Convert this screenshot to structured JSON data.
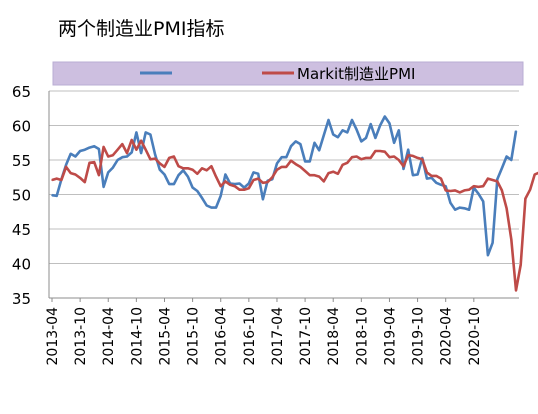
{
  "chart_data": {
    "type": "line",
    "title": "两个制造业PMI指标",
    "xlabel": "",
    "ylabel": "",
    "ylim": [
      35,
      65
    ],
    "yticks": [
      35,
      40,
      45,
      50,
      55,
      60,
      65
    ],
    "x_tick_labels": [
      "2013-04",
      "2013-10",
      "2014-04",
      "2014-10",
      "2015-04",
      "2015-10",
      "2016-04",
      "2016-10",
      "2017-04",
      "2017-10",
      "2018-04",
      "2018-10",
      "2019-04",
      "2019-10",
      "2020-04",
      "2020-10"
    ],
    "grid": "horizontal",
    "legend_position": "top",
    "x_start": "2013-04",
    "x_end": "2020-10",
    "series": [
      {
        "name": "",
        "color": "#4a7ebb",
        "values": [
          49.9,
          49.8,
          52.2,
          54.3,
          55.9,
          55.5,
          56.3,
          56.5,
          56.8,
          57.0,
          56.6,
          51.1,
          53.2,
          53.9,
          55.0,
          55.4,
          55.5,
          56.1,
          59.0,
          56.0,
          59.0,
          58.7,
          55.8,
          53.6,
          52.9,
          51.5,
          51.5,
          52.8,
          53.5,
          52.6,
          51.0,
          50.5,
          49.5,
          48.4,
          48.1,
          48.1,
          49.8,
          52.9,
          51.6,
          51.5,
          51.6,
          51.0,
          51.6,
          53.2,
          53.0,
          49.3,
          52.0,
          52.2,
          54.5,
          55.4,
          55.4,
          57.0,
          57.7,
          57.3,
          54.8,
          54.8,
          57.5,
          56.4,
          58.6,
          60.8,
          58.7,
          58.3,
          59.3,
          59.0,
          60.8,
          59.4,
          57.7,
          58.2,
          60.2,
          58.2,
          60.0,
          61.3,
          60.3,
          57.5,
          59.3,
          53.7,
          56.5,
          52.8,
          52.9,
          55.3,
          52.3,
          52.4,
          51.7,
          51.4,
          51.2,
          48.8,
          47.8,
          48.1,
          48.0,
          47.8,
          51.0,
          50.1,
          49.0,
          41.2,
          43.0,
          52.2,
          53.8,
          55.5,
          55.0,
          59.2
        ]
      },
      {
        "name": "Markit制造业PMI",
        "color": "#be4b48",
        "values": [
          52.1,
          52.3,
          52.1,
          54.0,
          53.1,
          52.9,
          52.4,
          51.8,
          54.6,
          54.7,
          52.8,
          56.9,
          55.5,
          55.7,
          56.5,
          57.3,
          56.0,
          57.9,
          56.5,
          57.8,
          56.5,
          55.1,
          55.2,
          54.5,
          54.0,
          55.3,
          55.5,
          54.1,
          53.8,
          53.8,
          53.6,
          53.0,
          53.8,
          53.5,
          54.1,
          52.6,
          51.2,
          51.9,
          51.4,
          51.2,
          50.7,
          50.7,
          50.9,
          52.1,
          52.3,
          51.7,
          51.8,
          52.5,
          53.6,
          54.0,
          54.0,
          54.9,
          54.4,
          54.0,
          53.4,
          52.8,
          52.8,
          52.6,
          51.9,
          53.1,
          53.3,
          53.0,
          54.3,
          54.6,
          55.4,
          55.5,
          55.1,
          55.3,
          55.3,
          56.3,
          56.3,
          56.2,
          55.4,
          55.5,
          55.0,
          54.1,
          55.7,
          55.6,
          55.3,
          55.1,
          53.2,
          52.7,
          52.7,
          52.3,
          50.6,
          50.5,
          50.6,
          50.3,
          50.6,
          50.7,
          51.2,
          51.1,
          51.2,
          52.3,
          52.1,
          51.9,
          50.6,
          48.0,
          43.5,
          36.1,
          39.8,
          49.4,
          50.7,
          52.9,
          53.2,
          53.3
        ]
      }
    ]
  }
}
